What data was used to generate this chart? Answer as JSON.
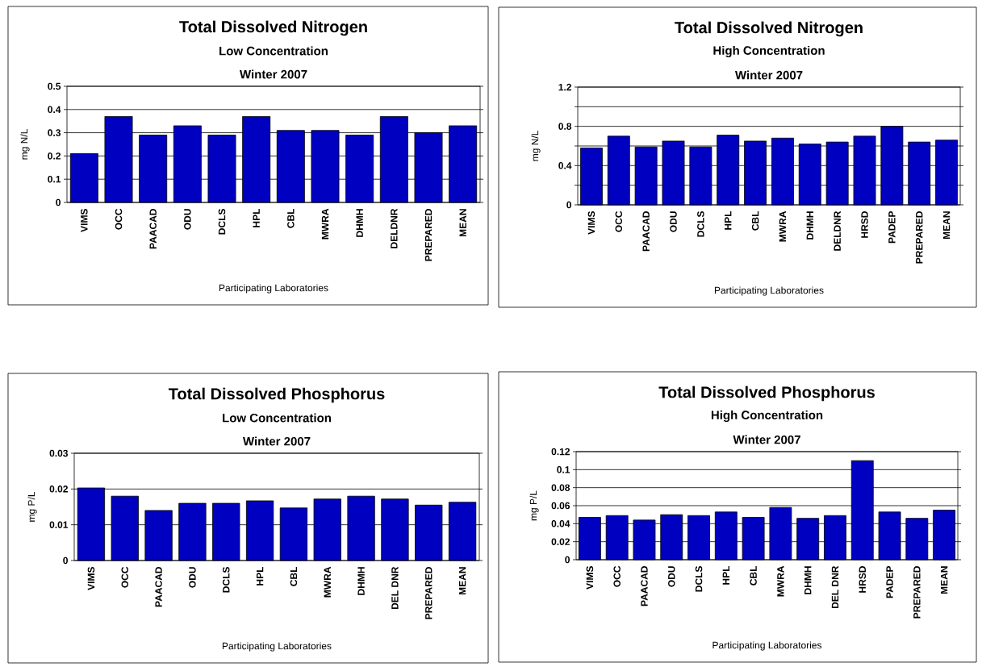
{
  "chart_data": [
    {
      "type": "bar",
      "title": "Total Dissolved Nitrogen",
      "subtitle": "Low Concentration",
      "annotations": [
        "Winter 2007"
      ],
      "xlabel": "Participating Laboratories",
      "ylabel": "mg N/L",
      "categories": [
        "VIMS",
        "OCC",
        "PAACAD",
        "ODU",
        "DCLS",
        "HPL",
        "CBL",
        "MWRA",
        "DHMH",
        "DELDNR",
        "PREPARED",
        "MEAN"
      ],
      "values": [
        0.21,
        0.37,
        0.29,
        0.33,
        0.29,
        0.37,
        0.31,
        0.31,
        0.29,
        0.37,
        0.3,
        0.33
      ],
      "color": "#0000c0",
      "ylim": [
        0,
        0.5
      ],
      "yticks": [
        0,
        0.1,
        0.2,
        0.3,
        0.4,
        0.5
      ],
      "grid": "y"
    },
    {
      "type": "bar",
      "title": "Total Dissolved Nitrogen",
      "subtitle": "High Concentration",
      "annotations": [
        "Winter 2007"
      ],
      "xlabel": "Participating Laboratories",
      "ylabel": "mg N/L",
      "categories": [
        "VIMS",
        "OCC",
        "PAACAD",
        "ODU",
        "DCLS",
        "HPL",
        "CBL",
        "MWRA",
        "DHMH",
        "DELDNR",
        "HRSD",
        "PADEP",
        "PREPARED",
        "MEAN"
      ],
      "values": [
        0.58,
        0.7,
        0.59,
        0.65,
        0.59,
        0.71,
        0.65,
        0.68,
        0.62,
        0.64,
        0.7,
        0.8,
        0.64,
        0.66
      ],
      "color": "#0000c0",
      "ylim": [
        0,
        1.2
      ],
      "yticks": [
        0,
        {
          "value": 0.2,
          "label": null
        },
        0.4,
        {
          "value": 0.6,
          "label": null
        },
        0.8,
        {
          "value": 1.0,
          "label": null
        },
        1.2
      ],
      "grid": "y"
    },
    {
      "type": "bar",
      "title": "Total Dissolved Phosphorus",
      "subtitle": "Low Concentration",
      "annotations": [
        "Winter 2007"
      ],
      "xlabel": "Participating Laboratories",
      "ylabel": "mg P/L",
      "categories": [
        "VIMS",
        "OCC",
        "PAACAD",
        "ODU",
        "DCLS",
        "HPL",
        "CBL",
        "MWRA",
        "DHMH",
        "DEL DNR",
        "PREPARED",
        "MEAN"
      ],
      "values": [
        0.0203,
        0.018,
        0.014,
        0.016,
        0.016,
        0.0167,
        0.0147,
        0.0172,
        0.018,
        0.0172,
        0.0155,
        0.0163
      ],
      "color": "#0000c0",
      "ylim": [
        0,
        0.03
      ],
      "yticks": [
        0,
        0.01,
        0.02,
        0.03
      ],
      "grid": "y"
    },
    {
      "type": "bar",
      "title": "Total Dissolved Phosphorus",
      "subtitle": "High Concentration",
      "annotations": [
        "Winter  2007"
      ],
      "xlabel": "Participating Laboratories",
      "ylabel": "mg P/L",
      "categories": [
        "VIMS",
        "OCC",
        "PAACAD",
        "ODU",
        "DCLS",
        "HPL",
        "CBL",
        "MWRA",
        "DHMH",
        "DEL DNR",
        "HRSD",
        "PADEP",
        "PREPARED",
        "MEAN"
      ],
      "values": [
        0.047,
        0.049,
        0.044,
        0.05,
        0.049,
        0.053,
        0.047,
        0.058,
        0.046,
        0.049,
        0.11,
        0.053,
        0.046,
        0.055
      ],
      "color": "#0000c0",
      "ylim": [
        0,
        0.12
      ],
      "yticks": [
        0,
        0.02,
        0.04,
        0.06,
        0.08,
        0.1,
        0.12
      ],
      "grid": "y"
    }
  ]
}
